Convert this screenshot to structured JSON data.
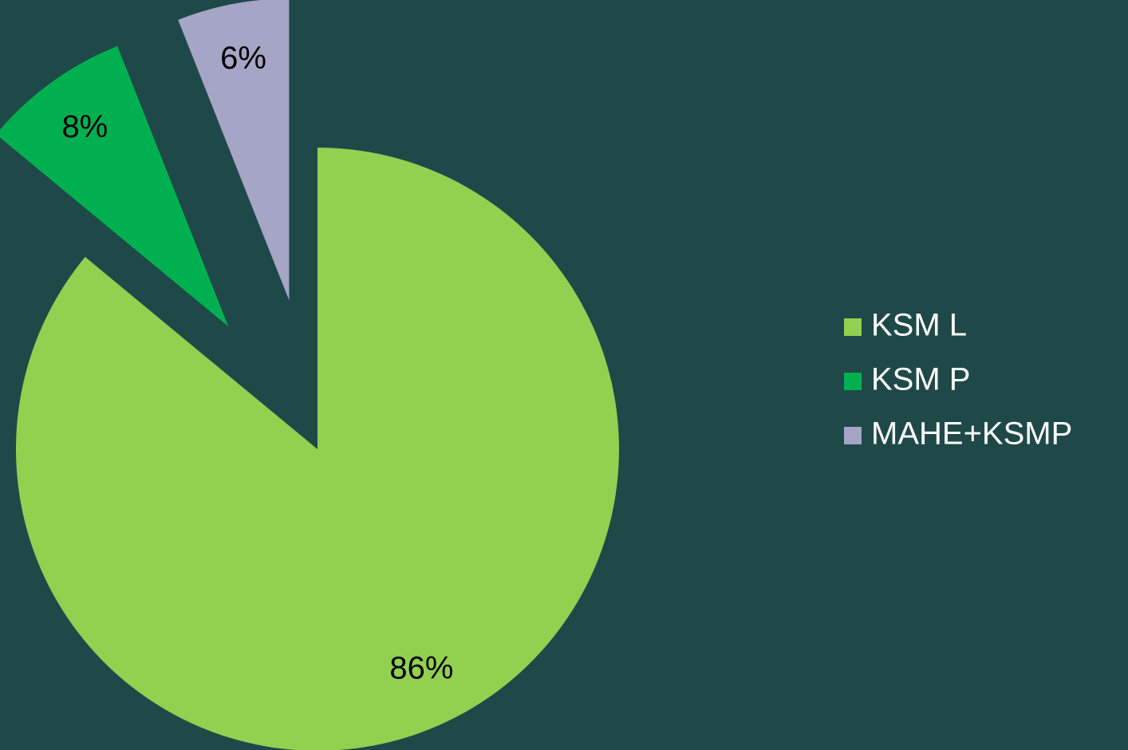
{
  "chart_data": {
    "type": "pie",
    "categories": [
      "KSM L",
      "KSM P",
      "MAHE+KSMP"
    ],
    "values": [
      86,
      8,
      6
    ],
    "value_labels": [
      "86%",
      "8%",
      "6%"
    ],
    "colors": [
      "#92d050",
      "#00b050",
      "#a5a5c6"
    ],
    "legend": "right"
  }
}
